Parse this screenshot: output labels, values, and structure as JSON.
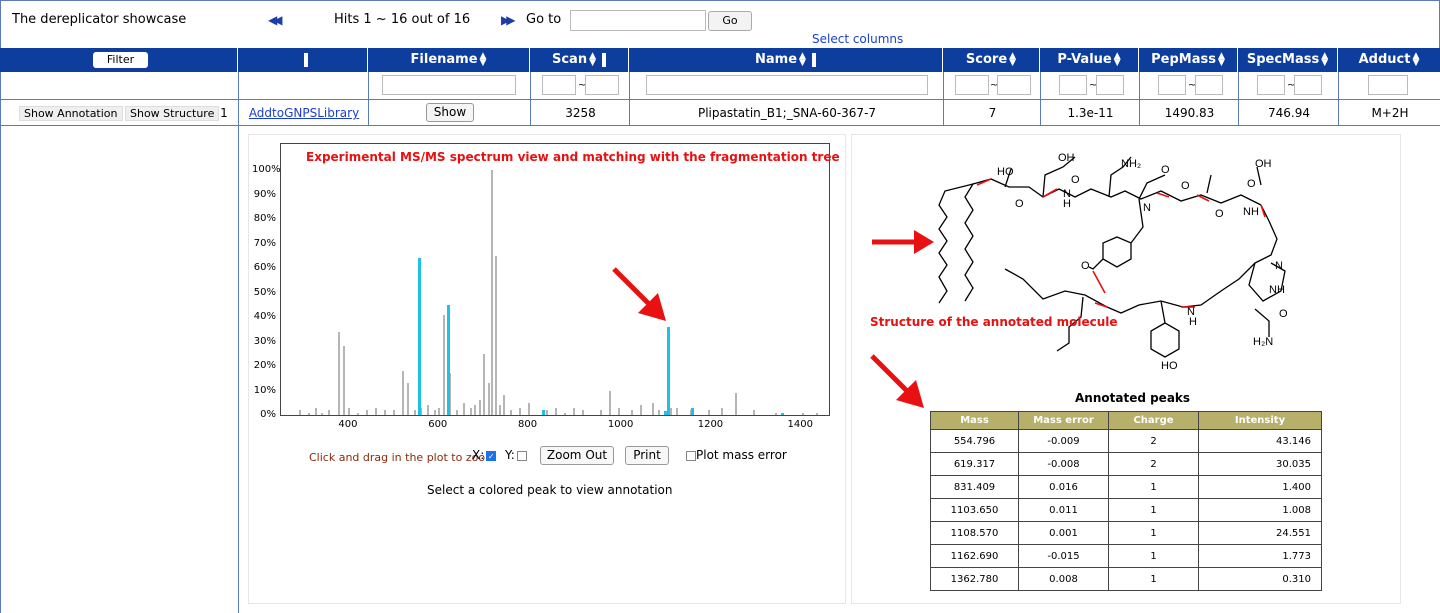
{
  "topbar": {
    "title": "The dereplicator showcase",
    "first_icon": "double-left-arrow-icon",
    "hits_text": "Hits 1 ~ 16 out of 16",
    "next_icon": "double-right-arrow-icon",
    "goto_label": "Go to",
    "goto_value": "",
    "go_button": "Go",
    "select_columns": "Select columns"
  },
  "columns": {
    "filter_button": "Filter",
    "filename": "Filename",
    "scan": "Scan",
    "name": "Name",
    "score": "Score",
    "pvalue": "P-Value",
    "pepmass": "PepMass",
    "specmass": "SpecMass",
    "adduct": "Adduct"
  },
  "filter_row": {
    "tilde": "~"
  },
  "row": {
    "show_annotation": "Show Annotation",
    "show_structure": "Show Structure",
    "index": "1",
    "library_link": "AddtoGNPSLibrary",
    "show_button": "Show",
    "scan": "3258",
    "name": "Plipastatin_B1;_SNA-60-367-7",
    "score": "7",
    "pvalue": "1.3e-11",
    "pepmass": "1490.83",
    "specmass": "746.94",
    "adduct": "M+2H"
  },
  "spectrum": {
    "title": "Experimental MS/MS spectrum view  and matching with the fragmentation tree",
    "zoom_hint": "Click and drag in the plot to zoom",
    "x_label": "X:",
    "y_label": "Y:",
    "x_checked": true,
    "y_checked": false,
    "zoom_out": "Zoom Out",
    "print": "Print",
    "plot_mass_error": "Plot mass error",
    "select_hint": "Select a colored peak to view annotation"
  },
  "chart_data": {
    "type": "bar",
    "title": "Experimental MS/MS spectrum view  and matching with the fragmentation tree",
    "xlabel": "",
    "ylabel": "",
    "xlim": [
      250,
      1470
    ],
    "ylim": [
      0,
      100
    ],
    "x_ticks": [
      "400",
      "600",
      "800",
      "1000",
      "1200",
      "1400"
    ],
    "y_ticks": [
      "0%",
      "10%",
      "20%",
      "30%",
      "40%",
      "50%",
      "60%",
      "70%",
      "80%",
      "90%",
      "100%"
    ],
    "series": [
      {
        "color": "#b5b5b5",
        "x": [
          290,
          310,
          325,
          340,
          355,
          378,
          388,
          400,
          420,
          440,
          460,
          480,
          500,
          520,
          530,
          545,
          560,
          575,
          590,
          600,
          610,
          625,
          640,
          655,
          670,
          680,
          690,
          700,
          710,
          718,
          726,
          735,
          745,
          760,
          780,
          800,
          840,
          860,
          880,
          900,
          920,
          960,
          980,
          1000,
          1030,
          1050,
          1075,
          1090,
          1115,
          1130,
          1160,
          1200,
          1230,
          1260,
          1300,
          1350,
          1410,
          1440
        ],
        "values": [
          2,
          1,
          3,
          1,
          2,
          34,
          28,
          3,
          1,
          2,
          3,
          2,
          2,
          18,
          13,
          2,
          3,
          4,
          2,
          3,
          41,
          17,
          2,
          5,
          3,
          4,
          6,
          25,
          13,
          100,
          65,
          4,
          8,
          2,
          3,
          5,
          2,
          3,
          1,
          3,
          2,
          2,
          10,
          3,
          2,
          4,
          5,
          2,
          3,
          3,
          2,
          2,
          3,
          9,
          2,
          1,
          1,
          1
        ]
      },
      {
        "color": "#1ec2e6",
        "x": [
          554.796,
          619.317,
          831.409,
          1103.65,
          1108.57,
          1162.69,
          1362.78
        ],
        "values": [
          64,
          45,
          2,
          1.5,
          36,
          3,
          0.8
        ]
      }
    ]
  },
  "structure": {
    "label": "Structure of the annotated molecule",
    "atoms": [
      "HO",
      "OH",
      "O",
      "NH2",
      "O",
      "OH",
      "O",
      "O",
      "O",
      "O",
      "O",
      "O",
      "H",
      "N",
      "H",
      "N",
      "N",
      "H",
      "N",
      "H",
      "NH",
      "N",
      "O",
      "NH",
      "N",
      "H",
      "N",
      "H",
      "O",
      "O",
      "H2N",
      "HO"
    ]
  },
  "annotated_peaks": {
    "title": "Annotated peaks",
    "headers": [
      "Mass",
      "Mass error",
      "Charge",
      "Intensity"
    ],
    "rows": [
      [
        "554.796",
        "-0.009",
        "2",
        "43.146"
      ],
      [
        "619.317",
        "-0.008",
        "2",
        "30.035"
      ],
      [
        "831.409",
        "0.016",
        "1",
        "1.400"
      ],
      [
        "1103.650",
        "0.011",
        "1",
        "1.008"
      ],
      [
        "1108.570",
        "0.001",
        "1",
        "24.551"
      ],
      [
        "1162.690",
        "-0.015",
        "1",
        "1.773"
      ],
      [
        "1362.780",
        "0.008",
        "1",
        "0.310"
      ]
    ]
  },
  "arrow_icon": "red-arrow-icon",
  "colors": {
    "header_blue": "#0d3d9d",
    "peak_cyan": "#1ec2e6",
    "peak_gray": "#b5b5b5",
    "red": "#e81010",
    "table_header": "#b6b06a"
  }
}
